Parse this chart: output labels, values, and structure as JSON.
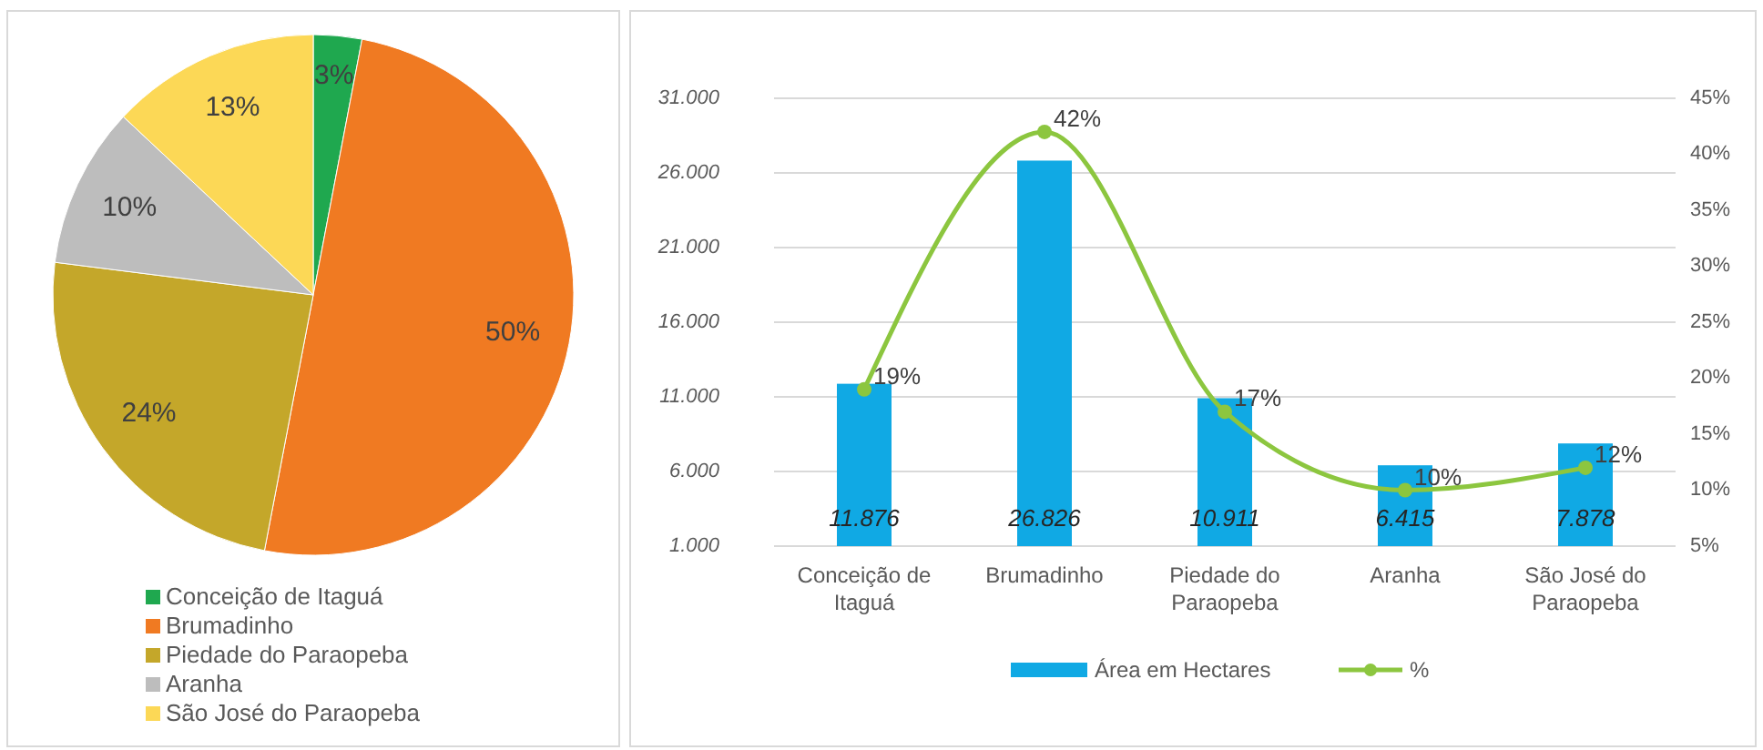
{
  "chart_data": [
    {
      "type": "pie",
      "categories": [
        "Conceição de Itaguá",
        "Brumadinho",
        "Piedade do Paraopeba",
        "Aranha",
        "São José do Paraopeba"
      ],
      "values": [
        3,
        50,
        24,
        10,
        13
      ],
      "colors": [
        "#1fa84f",
        "#f07a22",
        "#c4a72a",
        "#bdbdbd",
        "#fcd856"
      ],
      "value_labels": [
        "3%",
        "50%",
        "24%",
        "10%",
        "13%"
      ],
      "legend": "bottom"
    },
    {
      "type": "bar",
      "categories": [
        "Conceição de Itaguá",
        "Brumadinho",
        "Piedade do Paraopeba",
        "Aranha",
        "São José do Paraopeba"
      ],
      "series": [
        {
          "name": "Área em Hectares",
          "type": "bar",
          "color": "#10a9e4",
          "values": [
            11876,
            26826,
            10911,
            6415,
            7878
          ],
          "value_labels": [
            "11.876",
            "26.826",
            "10.911",
            "6.415",
            "7.878"
          ]
        },
        {
          "name": "%",
          "type": "line",
          "axis": "y2",
          "color": "#8cc63f",
          "values": [
            19,
            42,
            17,
            10,
            12
          ],
          "value_labels": [
            "19%",
            "42%",
            "17%",
            "10%",
            "12%"
          ]
        }
      ],
      "ylim": [
        1000,
        31000
      ],
      "yticks": [
        {
          "value": 1000,
          "label": "1.000"
        },
        {
          "value": 6000,
          "label": "6.000"
        },
        {
          "value": 11000,
          "label": "11.000"
        },
        {
          "value": 16000,
          "label": "16.000"
        },
        {
          "value": 21000,
          "label": "21.000"
        },
        {
          "value": 26000,
          "label": "26.000"
        },
        {
          "value": 31000,
          "label": "31.000"
        }
      ],
      "y2lim": [
        5,
        45
      ],
      "y2ticks": [
        {
          "value": 5,
          "label": "5%"
        },
        {
          "value": 10,
          "label": "10%"
        },
        {
          "value": 15,
          "label": "15%"
        },
        {
          "value": 20,
          "label": "20%"
        },
        {
          "value": 25,
          "label": "25%"
        },
        {
          "value": 30,
          "label": "30%"
        },
        {
          "value": 35,
          "label": "35%"
        },
        {
          "value": 40,
          "label": "40%"
        },
        {
          "value": 45,
          "label": "45%"
        }
      ],
      "grid": "y",
      "legend": "bottom",
      "marker": "circle"
    }
  ]
}
